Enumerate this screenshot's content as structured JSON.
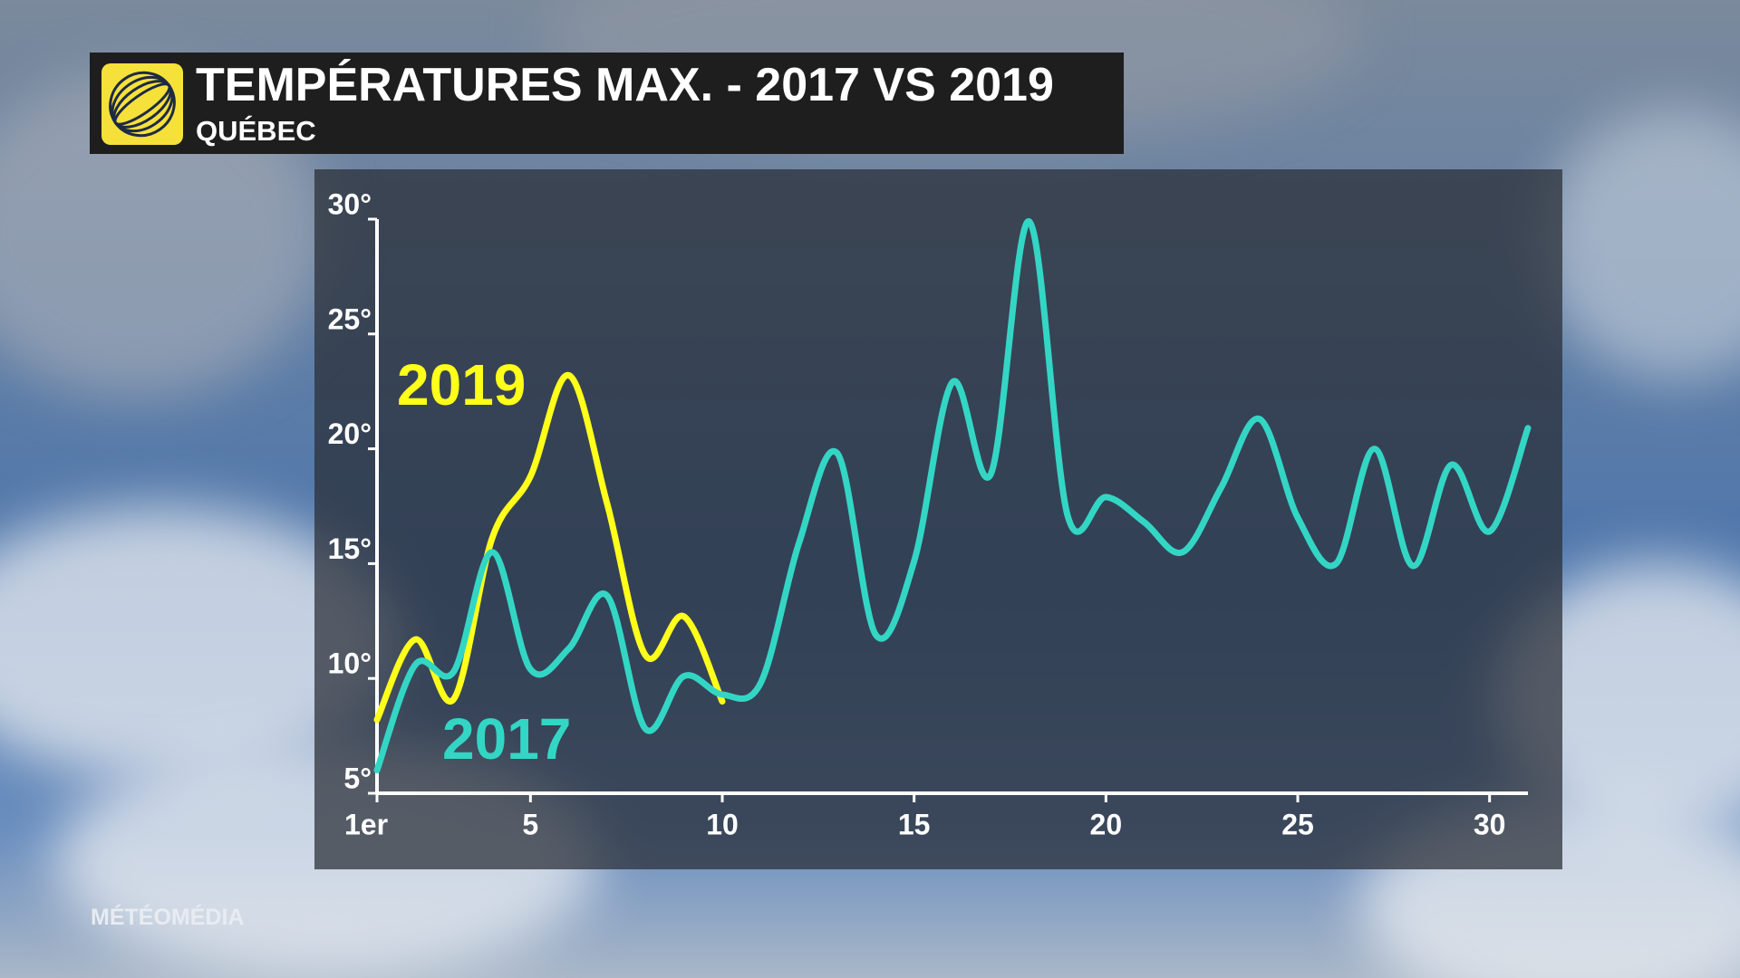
{
  "brand": "MÉTÉOMÉDIA",
  "chart_data": {
    "type": "line",
    "title": "TEMPÉRATURES MAX. - 2017 VS 2019",
    "subtitle": "QUÉBEC",
    "x": [
      1,
      2,
      3,
      4,
      5,
      6,
      7,
      8,
      9,
      10,
      11,
      12,
      13,
      14,
      15,
      16,
      17,
      18,
      19,
      20,
      21,
      22,
      23,
      24,
      25,
      26,
      27,
      28,
      29,
      30,
      31
    ],
    "series": [
      {
        "name": "2019",
        "color": "#ffff1a",
        "values": [
          8.2,
          11.7,
          9.1,
          16.1,
          18.8,
          23.2,
          17.6,
          11.0,
          12.7,
          9.0,
          null,
          null,
          null,
          null,
          null,
          null,
          null,
          null,
          null,
          null,
          null,
          null,
          null,
          null,
          null,
          null,
          null,
          null,
          null,
          null,
          null
        ]
      },
      {
        "name": "2017",
        "color": "#33d6c4",
        "values": [
          6.0,
          10.6,
          10.3,
          15.5,
          10.4,
          11.3,
          13.6,
          7.8,
          10.1,
          9.3,
          9.8,
          15.9,
          19.8,
          11.9,
          15.1,
          22.9,
          18.9,
          29.9,
          17.1,
          17.9,
          16.8,
          15.5,
          18.3,
          21.3,
          17.0,
          15.0,
          20.0,
          14.9,
          19.3,
          16.4,
          20.9
        ]
      }
    ],
    "xlim": [
      1,
      31
    ],
    "xticks": [
      {
        "value": 1,
        "label": "1er"
      },
      5,
      10,
      15,
      20,
      25,
      30
    ],
    "ylim": [
      5,
      30
    ],
    "yticks": [
      {
        "value": 5,
        "label": "5°"
      },
      {
        "value": 10,
        "label": "10°"
      },
      {
        "value": 15,
        "label": "15°"
      },
      {
        "value": 20,
        "label": "20°"
      },
      {
        "value": 25,
        "label": "25°"
      },
      {
        "value": 30,
        "label": "30°"
      }
    ],
    "grid": false,
    "smooth": true
  }
}
